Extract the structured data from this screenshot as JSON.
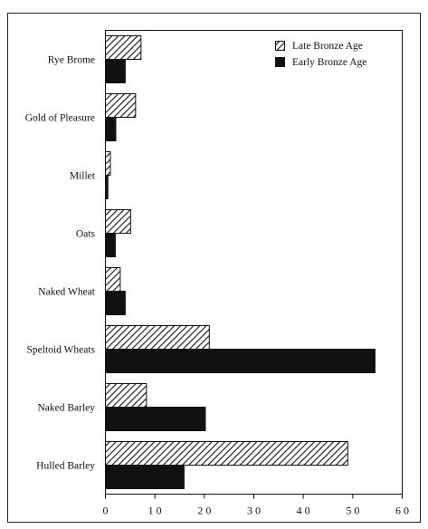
{
  "chart_data": {
    "type": "bar",
    "orientation": "horizontal",
    "categories": [
      "Rye Brome",
      "Gold of Pleasure",
      "Millet",
      "Oats",
      "Naked Wheat",
      "Speltoid Wheats",
      "Naked Barley",
      "Hulled Barley"
    ],
    "series": [
      {
        "name": "Late Bronze Age",
        "values": [
          7.2,
          6.1,
          1.0,
          5.1,
          3.0,
          21.0,
          8.3,
          49.0
        ],
        "pattern": "diagonal-hatch",
        "color": "#111111"
      },
      {
        "name": "Early Bronze Age",
        "values": [
          4.0,
          2.1,
          0.5,
          2.0,
          4.0,
          54.5,
          20.2,
          15.9
        ],
        "pattern": "solid",
        "color": "#111111"
      }
    ],
    "xlim": [
      0,
      60
    ],
    "xticks": [
      0,
      10,
      20,
      30,
      40,
      50,
      60
    ],
    "xtick_labels": [
      "0",
      "1 0",
      "2 0",
      "3 0",
      "4 0",
      "5 0",
      "6 0"
    ],
    "grid": false,
    "legend_position": "top-right",
    "title": "",
    "xlabel": "",
    "ylabel": ""
  }
}
